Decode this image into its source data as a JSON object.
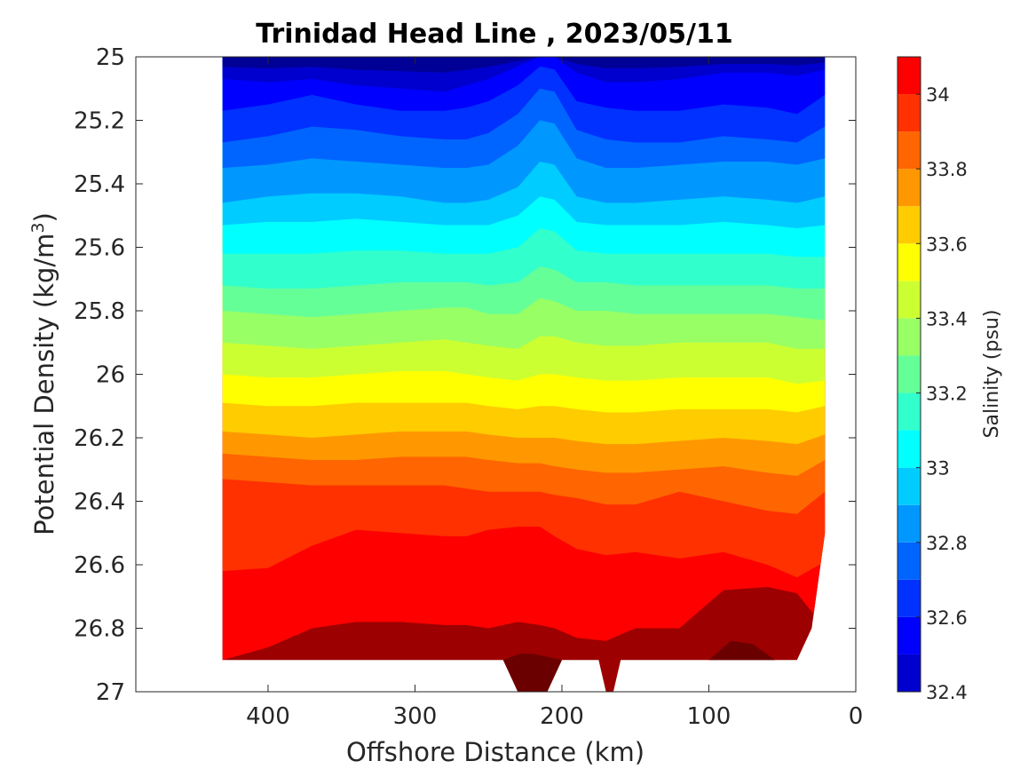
{
  "chart_data": {
    "type": "heatmap",
    "subtype": "filled-contour-section",
    "title": "Trinidad Head Line , 2023/05/11",
    "xlabel": "Offshore Distance (km)",
    "ylabel_main": "Potential Density (kg/m",
    "ylabel_sup": "3",
    "ylabel_end": ")",
    "colorbar_label": "Salinity (psu)",
    "xlim": [
      490,
      0
    ],
    "ylim": [
      25,
      27
    ],
    "y_reversed": true,
    "x_reversed": true,
    "xticks": [
      400,
      300,
      200,
      100,
      0
    ],
    "xtick_labels": [
      "400",
      "300",
      "200",
      "100",
      "0"
    ],
    "yticks": [
      25,
      25.2,
      25.4,
      25.6,
      25.8,
      26,
      26.2,
      26.4,
      26.6,
      26.8,
      27
    ],
    "ytick_labels": [
      "25",
      "25.2",
      "25.4",
      "25.6",
      "25.8",
      "26",
      "26.2",
      "26.4",
      "26.6",
      "26.8",
      "27"
    ],
    "colorbar_range": [
      32.4,
      34.1
    ],
    "colorbar_ticks": [
      32.4,
      32.6,
      32.8,
      33,
      33.2,
      33.4,
      33.6,
      33.8,
      34
    ],
    "colorbar_tick_labels": [
      "32.4",
      "32.6",
      "32.8",
      "33",
      "33.2",
      "33.4",
      "33.6",
      "33.8",
      "34"
    ],
    "levels": [
      32.4,
      32.5,
      32.6,
      32.7,
      32.8,
      32.9,
      33.0,
      33.1,
      33.2,
      33.3,
      33.4,
      33.5,
      33.6,
      33.7,
      33.8,
      33.9,
      34.0,
      34.1
    ],
    "colors": [
      "#000096",
      "#0000ce",
      "#0000ff",
      "#0031ff",
      "#0065ff",
      "#0098ff",
      "#00ccff",
      "#00ffff",
      "#31ffcc",
      "#65ff98",
      "#98ff65",
      "#ccff31",
      "#ffff00",
      "#ffcc00",
      "#ff9800",
      "#ff6500",
      "#ff3100",
      "#ff0000",
      "#ce0000",
      "#9c0000",
      "#6b0000"
    ],
    "section_x_range": [
      431,
      21
    ],
    "grid": false,
    "colorbar_position": "right",
    "isopycnal_boundaries": [
      {
        "s": 32.5,
        "x": [
          431,
          400,
          370,
          340,
          310,
          280,
          265,
          250,
          230,
          215,
          205,
          190,
          170,
          150,
          120,
          90,
          60,
          40,
          21
        ],
        "y": [
          25.07,
          25.08,
          25.07,
          25.09,
          25.1,
          25.11,
          25.09,
          25.07,
          25.03,
          25.0,
          25.0,
          25.05,
          25.08,
          25.08,
          25.07,
          25.05,
          25.05,
          25.06,
          25.04
        ]
      },
      {
        "s": 32.6,
        "x": [
          431,
          400,
          370,
          340,
          310,
          280,
          265,
          250,
          230,
          215,
          205,
          190,
          170,
          150,
          120,
          90,
          60,
          40,
          21
        ],
        "y": [
          25.17,
          25.15,
          25.12,
          25.15,
          25.17,
          25.17,
          25.16,
          25.14,
          25.09,
          25.03,
          25.04,
          25.14,
          25.16,
          25.17,
          25.17,
          25.15,
          25.16,
          25.18,
          25.12
        ]
      },
      {
        "s": 32.7,
        "x": [
          431,
          400,
          370,
          340,
          310,
          280,
          265,
          250,
          230,
          215,
          205,
          190,
          170,
          150,
          120,
          90,
          60,
          40,
          21
        ],
        "y": [
          25.27,
          25.25,
          25.22,
          25.23,
          25.25,
          25.26,
          25.26,
          25.24,
          25.18,
          25.1,
          25.11,
          25.23,
          25.26,
          25.27,
          25.27,
          25.25,
          25.26,
          25.27,
          25.22
        ]
      },
      {
        "s": 32.8,
        "x": [
          431,
          400,
          370,
          340,
          310,
          280,
          265,
          250,
          230,
          215,
          205,
          190,
          170,
          150,
          120,
          90,
          60,
          40,
          21
        ],
        "y": [
          25.35,
          25.34,
          25.32,
          25.33,
          25.34,
          25.35,
          25.35,
          25.34,
          25.28,
          25.2,
          25.21,
          25.32,
          25.35,
          25.35,
          25.34,
          25.33,
          25.33,
          25.34,
          25.32
        ]
      },
      {
        "s": 32.9,
        "x": [
          431,
          400,
          370,
          340,
          310,
          280,
          265,
          250,
          230,
          215,
          205,
          190,
          170,
          150,
          120,
          90,
          60,
          40,
          21
        ],
        "y": [
          25.46,
          25.44,
          25.43,
          25.43,
          25.44,
          25.46,
          25.46,
          25.45,
          25.41,
          25.33,
          25.34,
          25.44,
          25.46,
          25.46,
          25.45,
          25.44,
          25.45,
          25.46,
          25.44
        ]
      },
      {
        "s": 33.0,
        "x": [
          431,
          400,
          370,
          340,
          310,
          280,
          265,
          250,
          230,
          215,
          205,
          190,
          170,
          150,
          120,
          90,
          60,
          40,
          21
        ],
        "y": [
          25.53,
          25.52,
          25.52,
          25.51,
          25.52,
          25.53,
          25.53,
          25.53,
          25.5,
          25.44,
          25.45,
          25.52,
          25.53,
          25.53,
          25.53,
          25.52,
          25.53,
          25.54,
          25.53
        ]
      },
      {
        "s": 33.1,
        "x": [
          431,
          400,
          370,
          340,
          310,
          280,
          265,
          250,
          230,
          215,
          205,
          190,
          170,
          150,
          120,
          90,
          60,
          40,
          21
        ],
        "y": [
          25.62,
          25.62,
          25.62,
          25.61,
          25.61,
          25.62,
          25.62,
          25.62,
          25.6,
          25.54,
          25.55,
          25.61,
          25.62,
          25.62,
          25.62,
          25.62,
          25.62,
          25.63,
          25.63
        ]
      },
      {
        "s": 33.2,
        "x": [
          431,
          400,
          370,
          340,
          310,
          280,
          265,
          250,
          230,
          215,
          205,
          190,
          170,
          150,
          120,
          90,
          60,
          40,
          21
        ],
        "y": [
          25.72,
          25.73,
          25.73,
          25.72,
          25.71,
          25.71,
          25.71,
          25.72,
          25.71,
          25.66,
          25.67,
          25.71,
          25.71,
          25.72,
          25.72,
          25.72,
          25.72,
          25.73,
          25.73
        ]
      },
      {
        "s": 33.3,
        "x": [
          431,
          400,
          370,
          340,
          310,
          280,
          265,
          250,
          230,
          215,
          205,
          190,
          170,
          150,
          120,
          90,
          60,
          40,
          21
        ],
        "y": [
          25.8,
          25.81,
          25.82,
          25.81,
          25.8,
          25.79,
          25.79,
          25.81,
          25.81,
          25.76,
          25.77,
          25.8,
          25.8,
          25.81,
          25.81,
          25.81,
          25.81,
          25.82,
          25.83
        ]
      },
      {
        "s": 33.4,
        "x": [
          431,
          400,
          370,
          340,
          310,
          280,
          265,
          250,
          230,
          215,
          205,
          190,
          170,
          150,
          120,
          90,
          60,
          40,
          21
        ],
        "y": [
          25.9,
          25.91,
          25.92,
          25.91,
          25.9,
          25.89,
          25.9,
          25.91,
          25.92,
          25.88,
          25.88,
          25.9,
          25.91,
          25.91,
          25.9,
          25.9,
          25.9,
          25.92,
          25.92
        ]
      },
      {
        "s": 33.5,
        "x": [
          431,
          400,
          370,
          340,
          310,
          280,
          265,
          250,
          230,
          215,
          205,
          190,
          170,
          150,
          120,
          90,
          60,
          40,
          21
        ],
        "y": [
          26.0,
          26.01,
          26.01,
          26.0,
          25.99,
          25.99,
          26.0,
          26.01,
          26.02,
          26.0,
          26.0,
          26.01,
          26.02,
          26.02,
          26.01,
          26.01,
          26.01,
          26.03,
          26.02
        ]
      },
      {
        "s": 33.6,
        "x": [
          431,
          400,
          370,
          340,
          310,
          280,
          265,
          250,
          230,
          215,
          205,
          190,
          170,
          150,
          120,
          90,
          60,
          40,
          21
        ],
        "y": [
          26.09,
          26.1,
          26.1,
          26.09,
          26.09,
          26.09,
          26.09,
          26.1,
          26.11,
          26.1,
          26.1,
          26.11,
          26.12,
          26.12,
          26.11,
          26.11,
          26.11,
          26.12,
          26.1
        ]
      },
      {
        "s": 33.7,
        "x": [
          431,
          400,
          370,
          340,
          310,
          280,
          265,
          250,
          230,
          215,
          205,
          190,
          170,
          150,
          120,
          90,
          60,
          40,
          21
        ],
        "y": [
          26.18,
          26.19,
          26.2,
          26.19,
          26.18,
          26.18,
          26.18,
          26.19,
          26.2,
          26.2,
          26.2,
          26.21,
          26.22,
          26.22,
          26.21,
          26.2,
          26.21,
          26.22,
          26.19
        ]
      },
      {
        "s": 33.8,
        "x": [
          431,
          400,
          370,
          340,
          310,
          280,
          265,
          250,
          230,
          215,
          205,
          190,
          170,
          150,
          120,
          90,
          60,
          40,
          21
        ],
        "y": [
          26.25,
          26.26,
          26.27,
          26.27,
          26.26,
          26.26,
          26.26,
          26.27,
          26.28,
          26.28,
          26.29,
          26.3,
          26.31,
          26.31,
          26.3,
          26.29,
          26.31,
          26.32,
          26.27
        ]
      },
      {
        "s": 33.9,
        "x": [
          431,
          400,
          370,
          340,
          310,
          280,
          265,
          250,
          230,
          215,
          205,
          190,
          170,
          150,
          120,
          90,
          60,
          40,
          21
        ],
        "y": [
          26.33,
          26.34,
          26.35,
          26.35,
          26.35,
          26.35,
          26.36,
          26.37,
          26.37,
          26.37,
          26.38,
          26.39,
          26.41,
          26.41,
          26.37,
          26.4,
          26.43,
          26.44,
          26.37
        ]
      },
      {
        "s": 34.0,
        "x": [
          431,
          400,
          370,
          340,
          310,
          280,
          265,
          250,
          230,
          215,
          205,
          190,
          170,
          150,
          120,
          90,
          60,
          40,
          21
        ],
        "y": [
          26.62,
          26.61,
          26.54,
          26.49,
          26.5,
          26.51,
          26.51,
          26.49,
          26.48,
          26.48,
          26.51,
          26.55,
          26.57,
          26.56,
          26.58,
          26.56,
          26.6,
          26.64,
          26.59
        ]
      },
      {
        "s": 34.1,
        "x": [
          431,
          400,
          370,
          340,
          310,
          280,
          265,
          250,
          230,
          215,
          205,
          190,
          170,
          150,
          120,
          90,
          60,
          40,
          21
        ],
        "y": [
          26.9,
          26.86,
          26.8,
          26.78,
          26.78,
          26.79,
          26.79,
          26.8,
          26.78,
          26.79,
          26.8,
          26.83,
          26.84,
          26.8,
          26.8,
          26.68,
          26.67,
          26.69,
          26.8
        ]
      }
    ],
    "bottom_boundary": {
      "x": [
        431,
        390,
        300,
        250,
        240,
        230,
        220,
        210,
        200,
        195,
        180,
        175,
        170,
        165,
        160,
        155,
        140,
        100,
        60,
        40,
        30,
        21
      ],
      "y": [
        26.9,
        26.9,
        26.9,
        26.9,
        26.9,
        27.0,
        27.0,
        27.0,
        26.9,
        26.9,
        26.9,
        26.9,
        27.0,
        27.0,
        26.9,
        26.9,
        26.9,
        26.9,
        26.9,
        26.9,
        26.8,
        26.5
      ]
    },
    "deep_cores": [
      {
        "x": [
          240,
          228,
          220,
          210,
          200
        ],
        "y": [
          26.9,
          26.88,
          26.88,
          26.89,
          26.9
        ]
      },
      {
        "x": [
          100,
          85,
          70,
          55
        ],
        "y": [
          26.9,
          26.84,
          26.85,
          26.9
        ]
      }
    ]
  }
}
